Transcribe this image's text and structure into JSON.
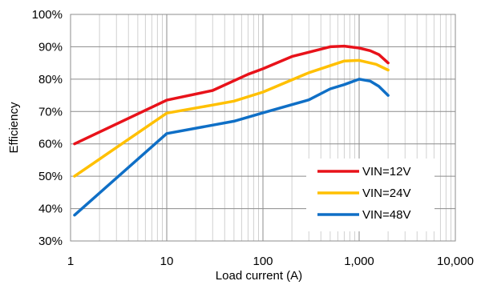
{
  "chart_data": {
    "type": "line",
    "xlabel": "Load current (A)",
    "ylabel": "Efficiency",
    "x_scale": "log",
    "xlim": [
      1,
      10000
    ],
    "ylim": [
      30,
      100
    ],
    "x_ticks": [
      {
        "value": 1,
        "label": "1"
      },
      {
        "value": 10,
        "label": "10"
      },
      {
        "value": 100,
        "label": "100"
      },
      {
        "value": 1000,
        "label": "1,000"
      },
      {
        "value": 10000,
        "label": "10,000"
      }
    ],
    "y_ticks": [
      {
        "value": 30,
        "label": "30%"
      },
      {
        "value": 40,
        "label": "40%"
      },
      {
        "value": 50,
        "label": "50%"
      },
      {
        "value": 60,
        "label": "60%"
      },
      {
        "value": 70,
        "label": "70%"
      },
      {
        "value": 80,
        "label": "80%"
      },
      {
        "value": 90,
        "label": "90%"
      },
      {
        "value": 100,
        "label": "100%"
      }
    ],
    "grid": true,
    "legend_position": "bottom-right",
    "series": [
      {
        "name": "VIN=12V",
        "color": "#e8121a",
        "points": [
          [
            1.1,
            60
          ],
          [
            10,
            73.5
          ],
          [
            30,
            76.5
          ],
          [
            70,
            81.5
          ],
          [
            100,
            83.2
          ],
          [
            200,
            87
          ],
          [
            500,
            90
          ],
          [
            700,
            90.2
          ],
          [
            1000,
            89.6
          ],
          [
            1300,
            88.8
          ],
          [
            1600,
            87.6
          ],
          [
            2000,
            85
          ]
        ]
      },
      {
        "name": "VIN=24V",
        "color": "#ffc000",
        "points": [
          [
            1.1,
            50
          ],
          [
            10,
            69.5
          ],
          [
            30,
            72
          ],
          [
            50,
            73.2
          ],
          [
            100,
            76
          ],
          [
            300,
            82
          ],
          [
            700,
            85.6
          ],
          [
            1000,
            85.8
          ],
          [
            1500,
            84.6
          ],
          [
            2000,
            82.8
          ]
        ]
      },
      {
        "name": "VIN=48V",
        "color": "#0f6fc6",
        "points": [
          [
            1.1,
            38
          ],
          [
            10,
            63.2
          ],
          [
            50,
            67
          ],
          [
            100,
            69.6
          ],
          [
            300,
            73.6
          ],
          [
            500,
            77
          ],
          [
            700,
            78.3
          ],
          [
            1000,
            80
          ],
          [
            1300,
            79.4
          ],
          [
            1600,
            77.8
          ],
          [
            2000,
            75
          ]
        ]
      }
    ]
  }
}
